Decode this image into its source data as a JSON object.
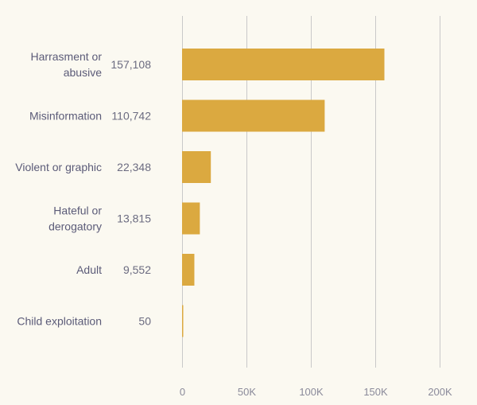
{
  "chart_data": {
    "type": "bar",
    "orientation": "horizontal",
    "title": "",
    "xlabel": "",
    "ylabel": "",
    "categories": [
      [
        "Harrasment or",
        "abusive"
      ],
      [
        "Misinformation"
      ],
      [
        "Violent or graphic"
      ],
      [
        "Hateful or",
        "derogatory"
      ],
      [
        "Adult"
      ],
      [
        "Child exploitation"
      ]
    ],
    "values": [
      157108,
      110742,
      22348,
      13815,
      9552,
      50
    ],
    "value_labels": [
      "157,108",
      "110,742",
      "22,348",
      "13,815",
      "9,552",
      "50"
    ],
    "xlim": [
      0,
      200000
    ],
    "ticks": [
      0,
      50000,
      100000,
      150000,
      200000
    ],
    "tick_labels": [
      "0",
      "50K",
      "100K",
      "150K",
      "200K"
    ],
    "grid": true,
    "colors": {
      "bar": "#dba940",
      "grid": "#c9c9c9",
      "background": "#fbf9f1"
    }
  }
}
